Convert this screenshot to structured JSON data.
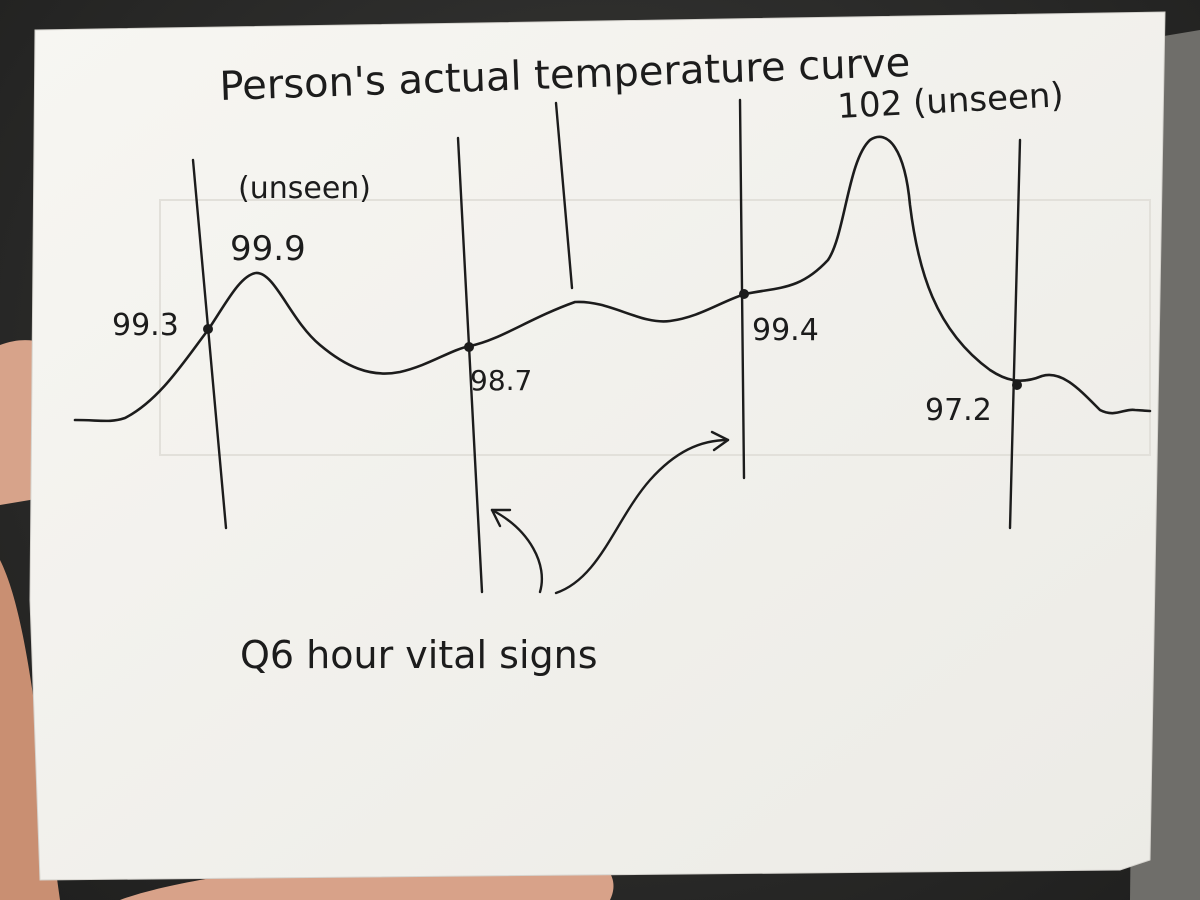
{
  "note": {
    "title": "Person's actual temperature curve",
    "annotation_unseen_left": "(unseen)",
    "annotation_peak_right": "102 (unseen)",
    "footer": "Q6 hour vital signs"
  },
  "readings": {
    "r1": "99.3",
    "r2": "99.9",
    "r3": "98.7",
    "r4": "99.4",
    "r5": "97.2"
  },
  "colors": {
    "paper": "#f6f5f1",
    "ink": "#1c1c1c",
    "skin": "#d9a58a"
  }
}
